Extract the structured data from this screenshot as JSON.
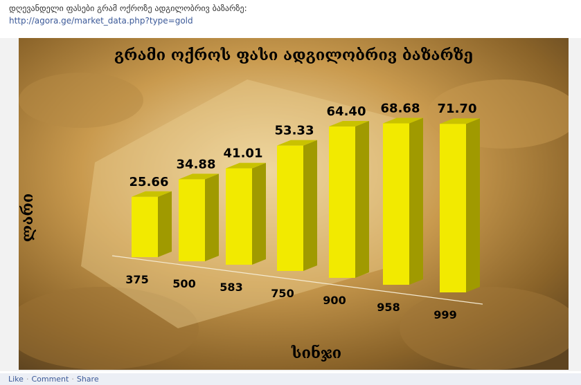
{
  "post": {
    "text": "დღევანდელი ფასები გრამ ოქროზე ადგილობრივ ბაზარზე:",
    "link": "http://agora.ge/market_data.php?type=gold"
  },
  "footer": {
    "like": "Like",
    "comment": "Comment",
    "share": "Share"
  },
  "chart_data": {
    "type": "bar",
    "title": "გრამი ოქროს ფასი ადგილობრივ ბაზარზე",
    "xlabel": "სინჯი",
    "ylabel": "ლარი",
    "categories": [
      "375",
      "500",
      "583",
      "750",
      "900",
      "958",
      "999"
    ],
    "values": [
      25.66,
      34.88,
      41.01,
      53.33,
      64.4,
      68.68,
      71.7
    ],
    "value_labels": [
      "25.66",
      "34.88",
      "41.01",
      "53.33",
      "64.40",
      "68.68",
      "71.70"
    ],
    "bar_color": "#f2ea00",
    "style": "3d"
  }
}
